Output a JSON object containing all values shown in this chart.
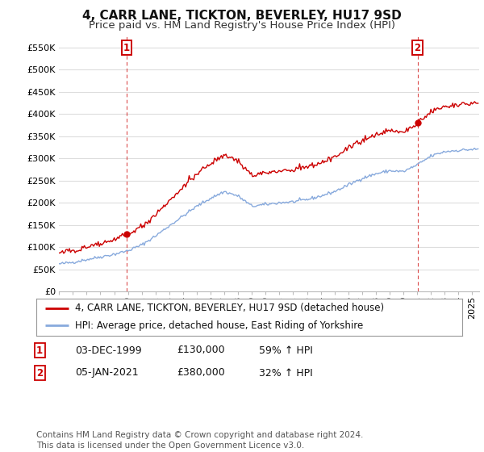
{
  "title": "4, CARR LANE, TICKTON, BEVERLEY, HU17 9SD",
  "subtitle": "Price paid vs. HM Land Registry's House Price Index (HPI)",
  "ylim": [
    0,
    575000
  ],
  "yticks": [
    0,
    50000,
    100000,
    150000,
    200000,
    250000,
    300000,
    350000,
    400000,
    450000,
    500000,
    550000
  ],
  "xlim_start": 1995.0,
  "xlim_end": 2025.5,
  "sale1_date_x": 1999.92,
  "sale1_price": 130000,
  "sale2_date_x": 2021.03,
  "sale2_price": 380000,
  "property_color": "#cc0000",
  "hpi_color": "#88aadd",
  "vline_color": "#cc0000",
  "legend1_label": "4, CARR LANE, TICKTON, BEVERLEY, HU17 9SD (detached house)",
  "legend2_label": "HPI: Average price, detached house, East Riding of Yorkshire",
  "table_row1": [
    "1",
    "03-DEC-1999",
    "£130,000",
    "59% ↑ HPI"
  ],
  "table_row2": [
    "2",
    "05-JAN-2021",
    "£380,000",
    "32% ↑ HPI"
  ],
  "footer": "Contains HM Land Registry data © Crown copyright and database right 2024.\nThis data is licensed under the Open Government Licence v3.0.",
  "background_color": "#ffffff",
  "grid_color": "#dddddd",
  "title_fontsize": 11,
  "subtitle_fontsize": 9.5,
  "tick_fontsize": 8,
  "legend_fontsize": 8.5,
  "table_fontsize": 9,
  "footer_fontsize": 7.5,
  "hpi_waypoints_x": [
    1995,
    1996,
    1997,
    1998,
    1999,
    2000,
    2001,
    2002,
    2003,
    2004,
    2005,
    2006,
    2007,
    2008,
    2009,
    2010,
    2011,
    2012,
    2013,
    2014,
    2015,
    2016,
    2017,
    2018,
    2019,
    2020,
    2021,
    2022,
    2023,
    2024,
    2025
  ],
  "hpi_waypoints_y": [
    62000,
    66000,
    72000,
    78000,
    84000,
    92000,
    105000,
    125000,
    148000,
    170000,
    192000,
    210000,
    225000,
    215000,
    192000,
    196000,
    200000,
    202000,
    207000,
    215000,
    225000,
    240000,
    255000,
    265000,
    272000,
    270000,
    285000,
    305000,
    315000,
    318000,
    320000
  ]
}
